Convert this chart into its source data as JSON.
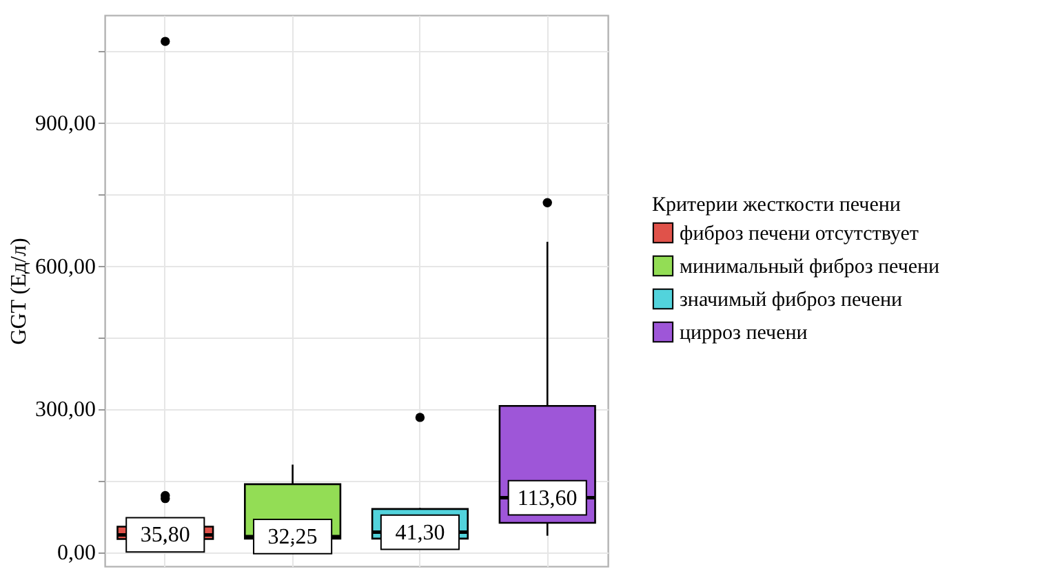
{
  "chart_data": {
    "type": "box",
    "ylabel": "GGT (Ед/л)",
    "legend_title": "Критерии жесткости печени",
    "categories": [
      null,
      null,
      null,
      null
    ],
    "ylim": [
      -30,
      1125
    ],
    "yticks": [
      {
        "value": 0,
        "label": "0,00"
      },
      {
        "value": 150,
        "label": null
      },
      {
        "value": 300,
        "label": "300,00"
      },
      {
        "value": 450,
        "label": null
      },
      {
        "value": 600,
        "label": "600,00"
      },
      {
        "value": 750,
        "label": null
      },
      {
        "value": 900,
        "label": "900,00"
      },
      {
        "value": 1050,
        "label": null
      }
    ],
    "grid": true,
    "legend": "right",
    "tick_labels": "y",
    "series": [
      {
        "name": "фиброз печени отсутствует",
        "color": "#e0524a",
        "boxes": [
          {
            "low": 20,
            "q1": 27,
            "median": 35.8,
            "q3": 53,
            "high": 58,
            "outliers": [
              112,
              118,
              1070
            ]
          },
          null,
          null,
          null
        ],
        "value_labels": [
          "35,80",
          null,
          null,
          null
        ]
      },
      {
        "name": "минимальный фиброз печени",
        "color": "#93dd55",
        "boxes": [
          null,
          {
            "low": 25,
            "q1": 28,
            "median": 32.25,
            "q3": 142,
            "high": 183
          },
          null,
          null
        ],
        "value_labels": [
          null,
          "32,25",
          null,
          null
        ]
      },
      {
        "name": "значимый фиброз печени",
        "color": "#52d3dc",
        "boxes": [
          null,
          null,
          {
            "low": 27,
            "q1": 28,
            "median": 41.3,
            "q3": 90,
            "high": 92,
            "outliers": [
              282
            ]
          },
          null
        ],
        "value_labels": [
          null,
          null,
          "41,30",
          null
        ]
      },
      {
        "name": "цирроз печени",
        "color": "#9e56d8",
        "boxes": [
          null,
          null,
          null,
          {
            "low": 34,
            "q1": 61,
            "median": 113.6,
            "q3": 306,
            "high": 650,
            "outliers": [
              732
            ]
          }
        ],
        "value_labels": [
          null,
          null,
          null,
          "113,60"
        ]
      }
    ]
  }
}
